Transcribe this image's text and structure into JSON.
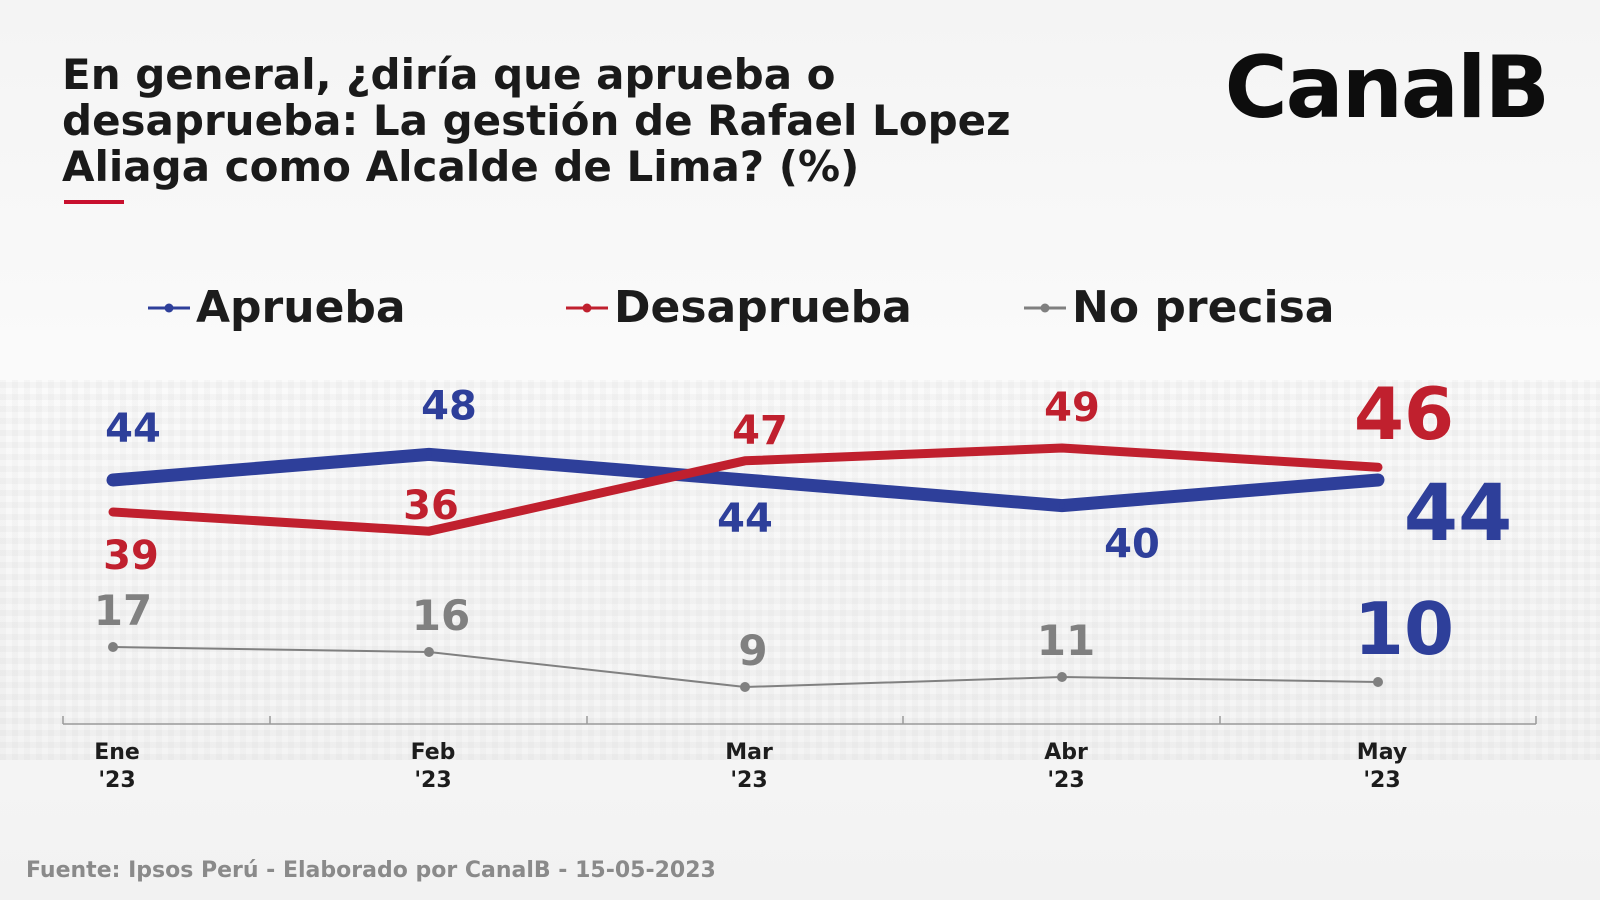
{
  "title": "En general, ¿diría que aprueba o desaprueba: La gestión de Rafael Lopez Aliaga como Alcalde de Lima? (%)",
  "brand": "CanalB",
  "source": "Fuente: Ipsos Perú - Elaborado por CanalB - 15-05-2023",
  "colors": {
    "aprueba": "#2e3f9a",
    "desaprueba": "#c0202e",
    "no_precisa": "#808080",
    "title_accent": "#c8102e"
  },
  "chart_data": {
    "type": "line",
    "title": "En general, ¿diría que aprueba o desaprueba: La gestión de Rafael Lopez Aliaga como Alcalde de Lima? (%)",
    "categories": [
      "Ene '23",
      "Feb '23",
      "Mar '23",
      "Abr '23",
      "May '23"
    ],
    "category_labels": [
      {
        "month": "Ene",
        "year": "'23"
      },
      {
        "month": "Feb",
        "year": "'23"
      },
      {
        "month": "Mar",
        "year": "'23"
      },
      {
        "month": "Abr",
        "year": "'23"
      },
      {
        "month": "May",
        "year": "'23"
      }
    ],
    "series": [
      {
        "name": "Aprueba",
        "values": [
          44,
          48,
          44,
          40,
          44
        ],
        "color": "#2e3f9a"
      },
      {
        "name": "Desaprueba",
        "values": [
          39,
          36,
          47,
          49,
          46
        ],
        "color": "#c0202e"
      },
      {
        "name": "No precisa",
        "values": [
          17,
          16,
          9,
          11,
          10
        ],
        "color": "#808080"
      }
    ],
    "legend": "top",
    "grid": false
  }
}
